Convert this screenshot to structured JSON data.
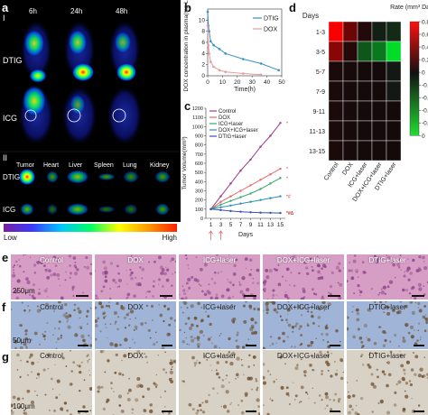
{
  "panels": {
    "a": {
      "label": "a",
      "section_I": "I",
      "section_II": "II",
      "times": [
        "6h",
        "24h",
        "48h"
      ],
      "rows": [
        "DTIG",
        "ICG"
      ],
      "organs": [
        "Tumor",
        "Heart",
        "Liver",
        "Spleen",
        "Lung",
        "Kidney"
      ],
      "rows_II": [
        "DTIG",
        "ICG"
      ],
      "colorbar_low": "Low",
      "colorbar_high": "High",
      "colorbar_colors": [
        "#7a1fa0",
        "#3a3aff",
        "#00c8ff",
        "#00ff66",
        "#ffff00",
        "#ff9900",
        "#ff2200"
      ]
    },
    "b": {
      "label": "b"
    },
    "c": {
      "label": "c"
    },
    "d": {
      "label": "d"
    },
    "e": {
      "label": "e",
      "titles": [
        "Control",
        "DOX",
        "ICG+laser",
        "DOX+ICG+laser",
        "DTIG+laser"
      ],
      "scale": "250μm"
    },
    "f": {
      "label": "f",
      "titles": [
        "Control",
        "DOX",
        "ICG+laser",
        "DOX+ICG+laser",
        "DTIG+laser"
      ],
      "scale": "50μm"
    },
    "g": {
      "label": "g",
      "titles": [
        "Control",
        "DOX",
        "ICG+laser",
        "DOX+ICG+laser",
        "DTIG+laser"
      ],
      "scale": "100μm"
    }
  },
  "chart_data": [
    {
      "id": "b",
      "type": "line",
      "xlabel": "Time(h)",
      "ylabel": "DOX concentration in plasma(mg L⁻¹)",
      "xlim": [
        0,
        50
      ],
      "ylim": [
        0,
        12
      ],
      "xticks": [
        0,
        10,
        20,
        30,
        40,
        50
      ],
      "yticks": [
        0,
        2,
        4,
        6,
        8,
        10
      ],
      "legend": "top-right",
      "series": [
        {
          "name": "DTIG",
          "color": "#3b8fc4",
          "x": [
            0,
            0.5,
            1,
            2,
            4,
            8,
            12,
            24,
            36,
            48
          ],
          "y": [
            11.5,
            9.0,
            8.0,
            6.2,
            5.5,
            4.8,
            4.0,
            3.0,
            2.2,
            1.0
          ]
        },
        {
          "name": "DOX",
          "color": "#e89a9a",
          "x": [
            0,
            0.5,
            1,
            2,
            4,
            8,
            12,
            24,
            36
          ],
          "y": [
            9.0,
            5.5,
            4.0,
            2.5,
            1.6,
            1.0,
            0.7,
            0.4,
            0.2
          ]
        }
      ]
    },
    {
      "id": "c",
      "type": "line",
      "xlabel": "Days",
      "ylabel": "Tumor Volume(mm³)",
      "xlim": [
        0,
        16
      ],
      "ylim": [
        0,
        1200
      ],
      "xticks": [
        1,
        3,
        5,
        7,
        9,
        11,
        13,
        15
      ],
      "yticks": [
        0,
        100,
        200,
        300,
        400,
        500,
        600,
        700,
        800,
        900,
        1000,
        1100,
        1200
      ],
      "legend": "top-left",
      "series": [
        {
          "name": "Control",
          "color": "#9b3b8a",
          "x": [
            1,
            3,
            5,
            7,
            9,
            11,
            13,
            15
          ],
          "y": [
            100,
            240,
            380,
            520,
            640,
            780,
            900,
            1040
          ]
        },
        {
          "name": "DOX",
          "color": "#e46a6a",
          "x": [
            1,
            3,
            5,
            7,
            9,
            11,
            13,
            15
          ],
          "y": [
            100,
            180,
            240,
            300,
            360,
            420,
            480,
            540
          ]
        },
        {
          "name": "ICG+laser",
          "color": "#3aa86b",
          "x": [
            1,
            3,
            5,
            7,
            9,
            11,
            13,
            15
          ],
          "y": [
            100,
            150,
            190,
            230,
            270,
            320,
            380,
            440
          ]
        },
        {
          "name": "DOX+ICG+laser",
          "color": "#2f8fb5",
          "x": [
            1,
            3,
            5,
            7,
            9,
            11,
            13,
            15
          ],
          "y": [
            100,
            120,
            140,
            160,
            180,
            200,
            220,
            240
          ]
        },
        {
          "name": "DTIG+laser",
          "color": "#3b4fb0",
          "x": [
            1,
            3,
            5,
            7,
            9,
            11,
            13,
            15
          ],
          "y": [
            100,
            90,
            80,
            72,
            66,
            62,
            60,
            58
          ]
        }
      ],
      "annotations": [
        "*",
        "*",
        "*",
        "*",
        "**",
        "**",
        "***"
      ],
      "sig_labels": [
        "*",
        "*",
        "*",
        "*#",
        "*#Δ",
        "*#Δ◎"
      ]
    },
    {
      "id": "d",
      "type": "heatmap",
      "title_top": "Days",
      "rows": [
        "1-3",
        "3-5",
        "5-7",
        "7-9",
        "9-11",
        "11-13",
        "13-15"
      ],
      "columns": [
        "Control",
        "DOX",
        "ICG+laser",
        "DOX+ICG+laser",
        "DTIG+laser"
      ],
      "colorbar_label": "Rate (mm³ Day⁻¹)",
      "colorbar_ticks": [
        "-0.8",
        "-0.6",
        "-0.4",
        "-0.2",
        "0"
      ],
      "values": [
        [
          0.78,
          0.3,
          0.05,
          -0.05,
          -0.1
        ],
        [
          0.4,
          0.05,
          -0.3,
          -0.45,
          -0.9
        ],
        [
          0.02,
          0.01,
          0.0,
          0.0,
          -0.02
        ],
        [
          0.02,
          0.01,
          0.0,
          0.0,
          -0.02
        ],
        [
          0.02,
          0.01,
          0.0,
          0.0,
          0.0
        ],
        [
          0.02,
          0.01,
          0.0,
          0.0,
          0.0
        ],
        [
          0.02,
          0.01,
          0.0,
          0.0,
          0.0
        ]
      ]
    }
  ]
}
